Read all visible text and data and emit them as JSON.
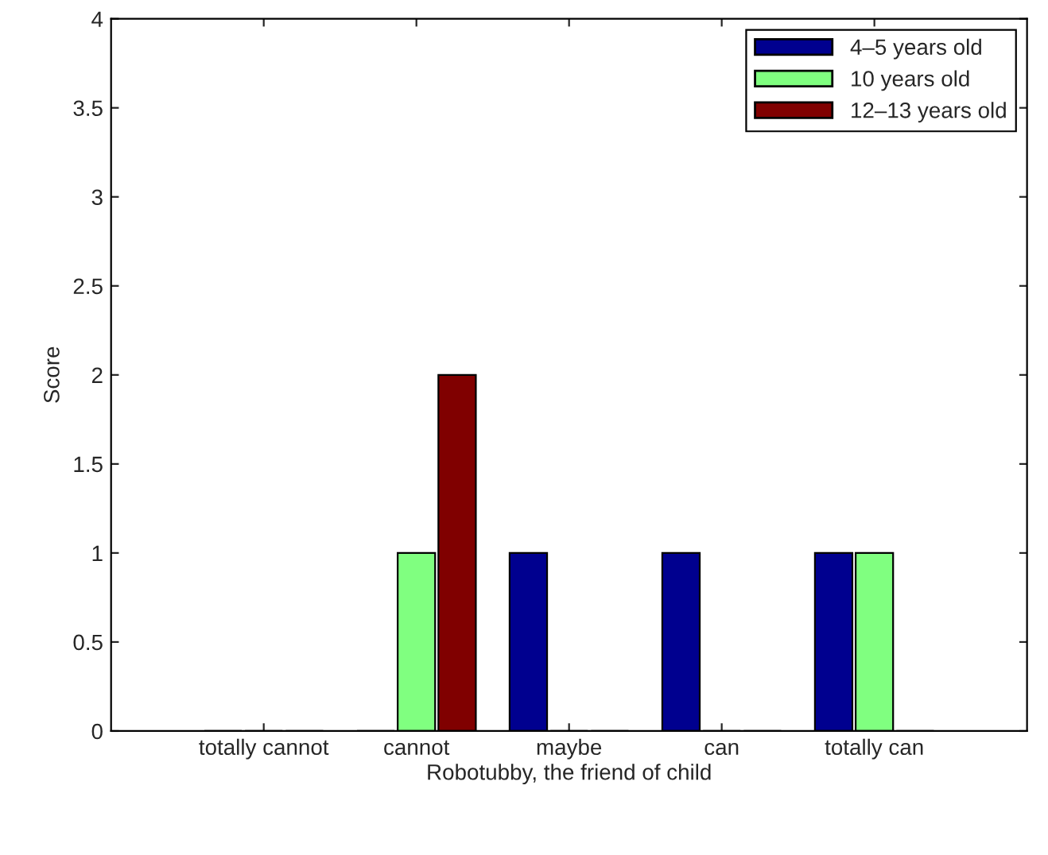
{
  "chart_data": {
    "type": "bar",
    "xlabel": "Robotubby, the friend of child",
    "ylabel": "Score",
    "categories": [
      "totally cannot",
      "cannot",
      "maybe",
      "can",
      "totally can"
    ],
    "series": [
      {
        "name": "4–5 years old",
        "color": "#00008f",
        "values": [
          0,
          0,
          1,
          1,
          1
        ]
      },
      {
        "name": "10 years old",
        "color": "#80ff80",
        "values": [
          0,
          1,
          0,
          0,
          1
        ]
      },
      {
        "name": "12–13 years old",
        "color": "#800000",
        "values": [
          0,
          2,
          0,
          0,
          0
        ]
      }
    ],
    "ylim": [
      0,
      4
    ],
    "yticks": [
      0,
      0.5,
      1,
      1.5,
      2,
      2.5,
      3,
      3.5,
      4
    ],
    "legend": "top right",
    "grid": false
  }
}
